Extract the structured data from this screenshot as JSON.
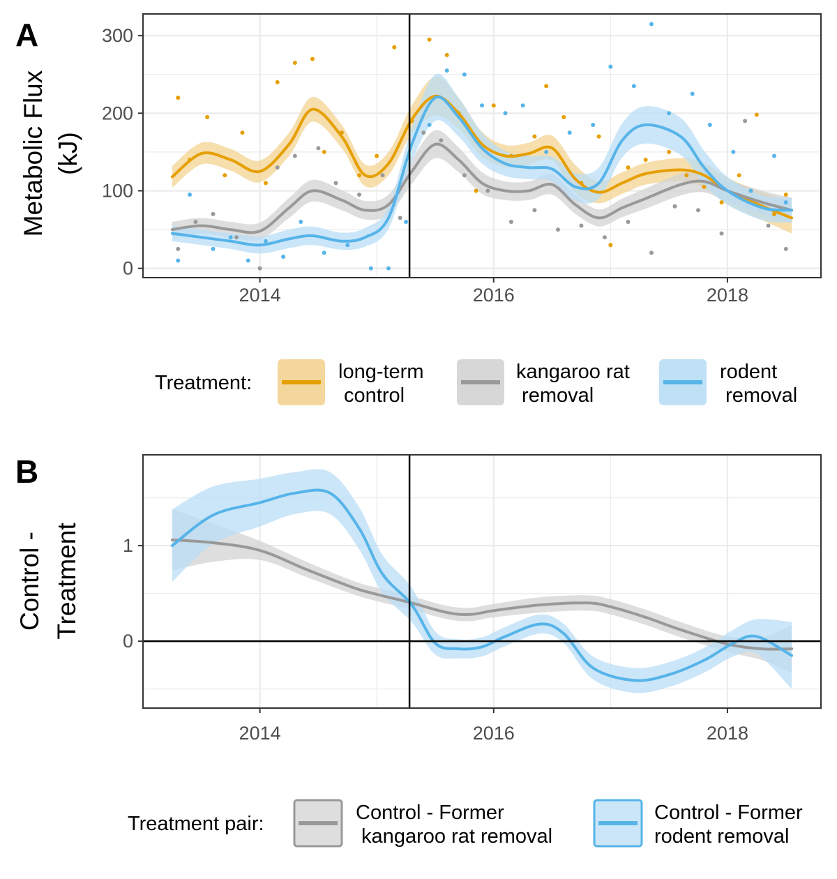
{
  "colors": {
    "control": "#E69F00",
    "control_fill": "#F3D391",
    "krat": "#999999",
    "krat_fill": "#D3D3D3",
    "rodent": "#56B4E9",
    "rodent_fill": "#B9DDF5",
    "grid": "#EBEBEB",
    "axis_text": "#4D4D4D"
  },
  "chart_data": [
    {
      "panel": "A",
      "type": "line",
      "title": "",
      "xlabel": "",
      "ylabel_lines": [
        "Metabolic Flux",
        "(kJ)"
      ],
      "xlim": [
        2013.0,
        2018.8
      ],
      "ylim": [
        -12,
        328
      ],
      "xticks": [
        2014,
        2016,
        2018
      ],
      "xtick_labels": [
        "2014",
        "2016",
        "2018"
      ],
      "yticks": [
        0,
        100,
        200,
        300
      ],
      "ytick_labels": [
        "0",
        "100",
        "200",
        "300"
      ],
      "vline": 2015.28,
      "legend_title": "Treatment:",
      "legend_position": "bottom",
      "grid": true,
      "series": [
        {
          "key": "control",
          "legend_lines": [
            "long-term",
            " control"
          ],
          "x": [
            2013.25,
            2013.5,
            2013.75,
            2014.0,
            2014.25,
            2014.45,
            2014.7,
            2014.9,
            2015.1,
            2015.3,
            2015.5,
            2015.7,
            2015.9,
            2016.1,
            2016.3,
            2016.5,
            2016.7,
            2016.9,
            2017.1,
            2017.3,
            2017.6,
            2017.8,
            2018.0,
            2018.3,
            2018.55
          ],
          "fit": [
            118,
            148,
            140,
            125,
            160,
            205,
            170,
            120,
            135,
            192,
            222,
            200,
            160,
            145,
            148,
            155,
            115,
            98,
            110,
            122,
            127,
            120,
            100,
            80,
            65
          ],
          "band": [
            14,
            14,
            14,
            14,
            15,
            16,
            15,
            14,
            15,
            18,
            25,
            20,
            16,
            14,
            14,
            16,
            18,
            14,
            14,
            14,
            15,
            16,
            17,
            18,
            20
          ],
          "points_x": [
            2013.3,
            2013.4,
            2013.55,
            2013.7,
            2013.85,
            2014.05,
            2014.15,
            2014.3,
            2014.45,
            2014.55,
            2014.7,
            2014.85,
            2015.0,
            2015.15,
            2015.3,
            2015.45,
            2015.6,
            2015.7,
            2015.85,
            2016.0,
            2016.15,
            2016.35,
            2016.45,
            2016.6,
            2016.75,
            2016.9,
            2017.0,
            2017.15,
            2017.3,
            2017.5,
            2017.65,
            2017.8,
            2017.95,
            2018.1,
            2018.25,
            2018.4,
            2018.5
          ],
          "points_y": [
            220,
            140,
            195,
            120,
            175,
            110,
            240,
            265,
            270,
            150,
            175,
            120,
            145,
            285,
            190,
            295,
            275,
            200,
            100,
            210,
            145,
            170,
            235,
            195,
            110,
            170,
            30,
            130,
            140,
            150,
            120,
            105,
            85,
            120,
            198,
            70,
            95
          ]
        },
        {
          "key": "krat",
          "legend_lines": [
            "kangaroo rat",
            " removal"
          ],
          "x": [
            2013.25,
            2013.5,
            2013.75,
            2014.0,
            2014.25,
            2014.45,
            2014.7,
            2014.9,
            2015.1,
            2015.3,
            2015.5,
            2015.7,
            2015.9,
            2016.1,
            2016.3,
            2016.5,
            2016.7,
            2016.9,
            2017.1,
            2017.3,
            2017.6,
            2017.8,
            2018.0,
            2018.3,
            2018.55
          ],
          "fit": [
            50,
            55,
            50,
            48,
            78,
            100,
            88,
            75,
            82,
            125,
            160,
            140,
            110,
            100,
            100,
            108,
            82,
            65,
            78,
            90,
            108,
            112,
            100,
            85,
            75
          ],
          "band": [
            10,
            10,
            10,
            11,
            13,
            14,
            13,
            12,
            13,
            16,
            18,
            16,
            14,
            12,
            12,
            13,
            12,
            11,
            12,
            13,
            14,
            14,
            14,
            15,
            16
          ],
          "points_x": [
            2013.3,
            2013.45,
            2013.6,
            2013.8,
            2014.0,
            2014.15,
            2014.3,
            2014.5,
            2014.65,
            2014.85,
            2015.05,
            2015.2,
            2015.4,
            2015.55,
            2015.75,
            2015.95,
            2016.15,
            2016.35,
            2016.55,
            2016.75,
            2016.95,
            2017.15,
            2017.35,
            2017.55,
            2017.75,
            2017.95,
            2018.15,
            2018.35,
            2018.5
          ],
          "points_y": [
            25,
            60,
            70,
            40,
            0,
            130,
            145,
            155,
            110,
            95,
            120,
            65,
            175,
            165,
            120,
            100,
            60,
            75,
            50,
            55,
            40,
            60,
            20,
            80,
            75,
            45,
            190,
            55,
            25
          ]
        },
        {
          "key": "rodent",
          "legend_lines": [
            "rodent",
            " removal"
          ],
          "x": [
            2013.25,
            2013.5,
            2013.75,
            2014.0,
            2014.25,
            2014.45,
            2014.7,
            2014.9,
            2015.1,
            2015.3,
            2015.5,
            2015.7,
            2015.9,
            2016.1,
            2016.3,
            2016.5,
            2016.7,
            2016.9,
            2017.1,
            2017.3,
            2017.6,
            2017.8,
            2018.0,
            2018.3,
            2018.55
          ],
          "fit": [
            45,
            40,
            35,
            30,
            38,
            42,
            35,
            40,
            65,
            160,
            220,
            195,
            155,
            135,
            130,
            128,
            105,
            110,
            165,
            185,
            170,
            130,
            100,
            78,
            75
          ],
          "band": [
            10,
            10,
            10,
            11,
            12,
            12,
            11,
            12,
            14,
            22,
            30,
            25,
            20,
            16,
            15,
            16,
            18,
            20,
            22,
            24,
            24,
            22,
            18,
            16,
            16
          ],
          "points_x": [
            2013.3,
            2013.4,
            2013.6,
            2013.75,
            2013.9,
            2014.05,
            2014.2,
            2014.35,
            2014.55,
            2014.75,
            2014.95,
            2015.1,
            2015.25,
            2015.45,
            2015.6,
            2015.75,
            2015.9,
            2016.1,
            2016.25,
            2016.45,
            2016.65,
            2016.85,
            2017.0,
            2017.2,
            2017.35,
            2017.5,
            2017.7,
            2017.85,
            2018.05,
            2018.2,
            2018.4,
            2018.5
          ],
          "points_y": [
            10,
            95,
            25,
            40,
            10,
            35,
            15,
            60,
            20,
            30,
            0,
            0,
            60,
            185,
            255,
            250,
            210,
            200,
            210,
            150,
            175,
            185,
            260,
            235,
            315,
            200,
            225,
            185,
            150,
            100,
            145,
            85
          ]
        }
      ]
    },
    {
      "panel": "B",
      "type": "line",
      "title": "",
      "xlabel": "",
      "ylabel_lines": [
        "Control -",
        "Treatment"
      ],
      "xlim": [
        2013.0,
        2018.8
      ],
      "ylim": [
        -0.7,
        1.95
      ],
      "xticks": [
        2014,
        2016,
        2018
      ],
      "xtick_labels": [
        "2014",
        "2016",
        "2018"
      ],
      "yticks": [
        0,
        1
      ],
      "ytick_labels": [
        "0",
        "1"
      ],
      "vline": 2015.28,
      "hline": 0,
      "legend_title": "Treatment pair:",
      "legend_position": "bottom",
      "grid": true,
      "series": [
        {
          "key": "krat",
          "legend_lines": [
            "Control - Former",
            " kangaroo rat removal"
          ],
          "x": [
            2013.25,
            2013.6,
            2014.0,
            2014.4,
            2014.8,
            2015.0,
            2015.3,
            2015.6,
            2015.8,
            2016.0,
            2016.4,
            2016.8,
            2017.0,
            2017.3,
            2017.6,
            2018.0,
            2018.3,
            2018.55
          ],
          "fit": [
            1.06,
            1.03,
            0.95,
            0.75,
            0.56,
            0.49,
            0.4,
            0.3,
            0.28,
            0.32,
            0.38,
            0.4,
            0.36,
            0.25,
            0.12,
            -0.03,
            -0.08,
            -0.08
          ],
          "band": [
            0.32,
            0.2,
            0.1,
            0.08,
            0.07,
            0.07,
            0.07,
            0.07,
            0.07,
            0.07,
            0.08,
            0.08,
            0.08,
            0.08,
            0.08,
            0.08,
            0.12,
            0.25
          ]
        },
        {
          "key": "rodent",
          "legend_lines": [
            "Control - Former",
            "rodent removal"
          ],
          "x": [
            2013.25,
            2013.6,
            2014.0,
            2014.3,
            2014.6,
            2014.85,
            2015.05,
            2015.3,
            2015.5,
            2015.7,
            2015.9,
            2016.1,
            2016.4,
            2016.6,
            2016.85,
            2017.2,
            2017.5,
            2017.8,
            2018.05,
            2018.25,
            2018.55
          ],
          "fit": [
            1.0,
            1.32,
            1.45,
            1.55,
            1.55,
            1.18,
            0.7,
            0.38,
            -0.02,
            -0.08,
            -0.06,
            0.05,
            0.18,
            0.08,
            -0.28,
            -0.41,
            -0.35,
            -0.2,
            -0.02,
            0.05,
            -0.15
          ],
          "band": [
            0.38,
            0.3,
            0.25,
            0.22,
            0.22,
            0.22,
            0.2,
            0.18,
            0.12,
            0.1,
            0.1,
            0.1,
            0.1,
            0.1,
            0.12,
            0.13,
            0.13,
            0.13,
            0.14,
            0.18,
            0.35
          ]
        }
      ]
    }
  ],
  "panel_labels": [
    "A",
    "B"
  ]
}
